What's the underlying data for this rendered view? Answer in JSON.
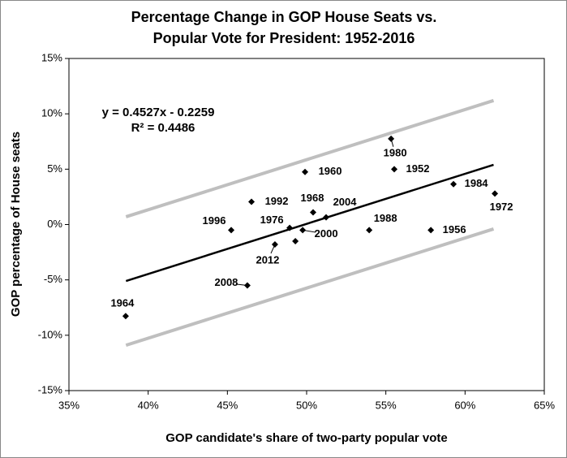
{
  "chart_data": {
    "type": "scatter",
    "title": [
      "Percentage Change in GOP House Seats vs.",
      "Popular Vote for President: 1952-2016"
    ],
    "x_label": "GOP candidate's share of two-party popular vote",
    "y_label": "GOP percentage of House seats",
    "annotations": [
      "y = 0.4527x - 0.2259",
      "R² = 0.4486"
    ],
    "xlim": [
      35,
      65
    ],
    "xticks": [
      {
        "value": 35,
        "label": "35%"
      },
      {
        "value": 40,
        "label": "40%"
      },
      {
        "value": 45,
        "label": "45%"
      },
      {
        "value": 50,
        "label": "50%"
      },
      {
        "value": 55,
        "label": "55%"
      },
      {
        "value": 60,
        "label": "60%"
      },
      {
        "value": 65,
        "label": "65%"
      }
    ],
    "ylim": [
      -15,
      15
    ],
    "yticks": [
      {
        "value": -15,
        "label": "-15%"
      },
      {
        "value": -10,
        "label": "-10%"
      },
      {
        "value": -5,
        "label": "-5%"
      },
      {
        "value": 0,
        "label": "0%"
      },
      {
        "value": 5,
        "label": "5%"
      },
      {
        "value": 10,
        "label": "10%"
      },
      {
        "value": 15,
        "label": "15%"
      }
    ],
    "series": [
      {
        "color": "#000000",
        "labels": [
          "1964",
          "1996",
          "1992",
          "2008",
          "2012",
          "1976",
          "2000",
          null,
          "1960",
          "1968",
          "2004",
          "1988",
          "1956",
          "1980",
          "1952",
          "1984",
          "1972"
        ],
        "x": [
          38.58,
          45.24,
          46.52,
          46.26,
          48.0,
          48.93,
          49.75,
          49.29,
          49.9,
          50.41,
          51.23,
          53.95,
          57.84,
          55.33,
          55.53,
          59.27,
          61.88
        ],
        "values": [
          -8.27,
          -0.5,
          2.05,
          -5.5,
          -1.8,
          -0.3,
          -0.5,
          -1.5,
          4.75,
          1.1,
          0.65,
          -0.5,
          -0.5,
          7.75,
          5.0,
          3.65,
          2.8
        ]
      }
    ],
    "lines": [
      {
        "color": "#000000",
        "x": [
          38.6,
          61.8
        ],
        "values": [
          -5.1,
          5.4
        ]
      },
      {
        "color": "#bfbfbf",
        "x": [
          38.6,
          61.8
        ],
        "values": [
          0.7,
          11.2
        ]
      },
      {
        "color": "#bfbfbf",
        "x": [
          38.6,
          61.8
        ],
        "values": [
          -10.9,
          -0.4
        ]
      }
    ]
  }
}
